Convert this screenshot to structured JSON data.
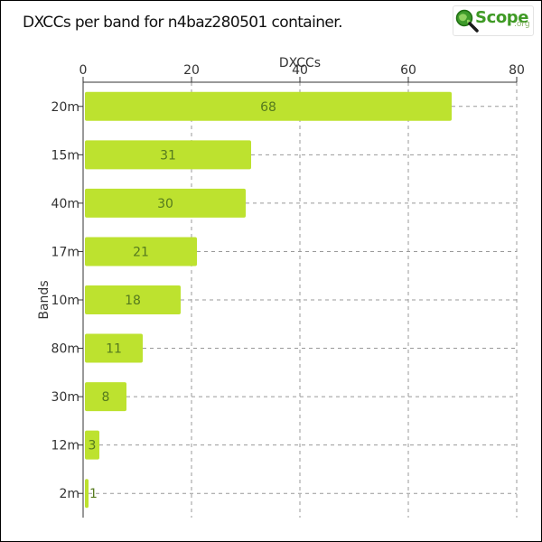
{
  "title": "DXCCs per band for n4baz280501 container.",
  "logo": {
    "text": "Scope",
    "tld": ".org"
  },
  "chart_data": {
    "type": "bar",
    "orientation": "horizontal",
    "categories": [
      "20m",
      "15m",
      "40m",
      "17m",
      "10m",
      "80m",
      "30m",
      "12m",
      "2m"
    ],
    "values": [
      68,
      31,
      30,
      21,
      18,
      11,
      8,
      3,
      1
    ],
    "xlabel": "DXCCs",
    "ylabel": "Bands",
    "xlim": [
      0,
      80
    ],
    "xticks": [
      "0",
      "20",
      "40",
      "60",
      "80"
    ],
    "x_axis_position": "top",
    "grid": true,
    "bar_color": "#bde22f",
    "bar_label_color": "#557a1e"
  }
}
